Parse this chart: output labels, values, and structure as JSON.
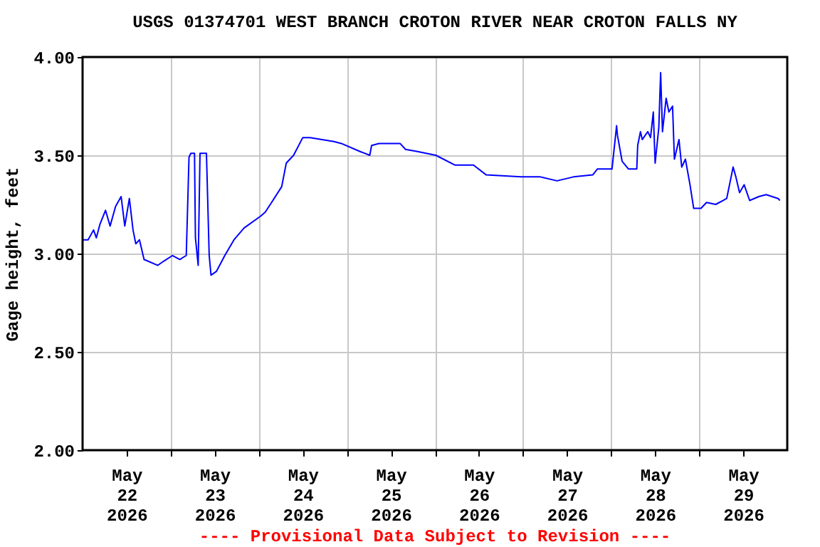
{
  "chart_data": {
    "type": "line",
    "title": "USGS 01374701 WEST BRANCH CROTON RIVER NEAR CROTON FALLS NY",
    "ylabel": "Gage height, feet",
    "annotations": [
      "---- Provisional Data Subject to Revision ----"
    ],
    "xlim": [
      "2026-05-22T00:00",
      "2026-05-30T00:00"
    ],
    "xticks": [
      {
        "value": "2026-05-22T12:00",
        "label": "May\n22\n2026"
      },
      {
        "value": "2026-05-23T00:00",
        "label": null
      },
      {
        "value": "2026-05-23T12:00",
        "label": "May\n23\n2026"
      },
      {
        "value": "2026-05-24T00:00",
        "label": null
      },
      {
        "value": "2026-05-24T12:00",
        "label": "May\n24\n2026"
      },
      {
        "value": "2026-05-25T00:00",
        "label": null
      },
      {
        "value": "2026-05-25T12:00",
        "label": "May\n25\n2026"
      },
      {
        "value": "2026-05-26T00:00",
        "label": null
      },
      {
        "value": "2026-05-26T12:00",
        "label": "May\n26\n2026"
      },
      {
        "value": "2026-05-27T00:00",
        "label": null
      },
      {
        "value": "2026-05-27T12:00",
        "label": "May\n27\n2026"
      },
      {
        "value": "2026-05-28T00:00",
        "label": null
      },
      {
        "value": "2026-05-28T12:00",
        "label": "May\n28\n2026"
      },
      {
        "value": "2026-05-29T00:00",
        "label": null
      },
      {
        "value": "2026-05-29T12:00",
        "label": "May\n29\n2026"
      }
    ],
    "ylim": [
      2.0,
      4.0
    ],
    "yticks": [
      {
        "value": 2.0,
        "label": "2.00"
      },
      {
        "value": 2.5,
        "label": "2.50"
      },
      {
        "value": 3.0,
        "label": "3.00"
      },
      {
        "value": 3.5,
        "label": "3.50"
      },
      {
        "value": 4.0,
        "label": "4.00"
      }
    ],
    "grid": true,
    "marker": "none",
    "line_style": "solid",
    "x": [
      "2026-05-22T00:00",
      "2026-05-22T01:30",
      "2026-05-22T03:00",
      "2026-05-22T03:45",
      "2026-05-22T04:45",
      "2026-05-22T06:15",
      "2026-05-22T07:30",
      "2026-05-22T09:00",
      "2026-05-22T10:30",
      "2026-05-22T11:30",
      "2026-05-22T12:45",
      "2026-05-22T13:45",
      "2026-05-22T14:30",
      "2026-05-22T15:30",
      "2026-05-22T16:45",
      "2026-05-22T20:30",
      "2026-05-22T22:00",
      "2026-05-23T00:30",
      "2026-05-23T02:30",
      "2026-05-23T04:15",
      "2026-05-23T05:00",
      "2026-05-23T05:30",
      "2026-05-23T06:30",
      "2026-05-23T06:45",
      "2026-05-23T07:30",
      "2026-05-23T08:00",
      "2026-05-23T09:45",
      "2026-05-23T10:30",
      "2026-05-23T11:00",
      "2026-05-23T12:30",
      "2026-05-23T14:45",
      "2026-05-23T17:15",
      "2026-05-23T20:00",
      "2026-05-24T00:30",
      "2026-05-24T01:45",
      "2026-05-24T03:30",
      "2026-05-24T06:15",
      "2026-05-24T07:30",
      "2026-05-24T09:30",
      "2026-05-24T12:00",
      "2026-05-24T14:00",
      "2026-05-24T20:30",
      "2026-05-24T22:30",
      "2026-05-25T03:30",
      "2026-05-25T06:15",
      "2026-05-25T06:45",
      "2026-05-25T08:45",
      "2026-05-25T14:30",
      "2026-05-25T16:00",
      "2026-05-25T19:00",
      "2026-05-26T00:15",
      "2026-05-26T05:30",
      "2026-05-26T10:30",
      "2026-05-26T14:00",
      "2026-05-26T23:30",
      "2026-05-27T04:45",
      "2026-05-27T09:15",
      "2026-05-27T13:45",
      "2026-05-27T19:00",
      "2026-05-27T20:15",
      "2026-05-28T00:15",
      "2026-05-28T01:30",
      "2026-05-28T01:45",
      "2026-05-28T03:00",
      "2026-05-28T04:45",
      "2026-05-28T07:00",
      "2026-05-28T07:15",
      "2026-05-28T08:00",
      "2026-05-28T08:30",
      "2026-05-28T10:00",
      "2026-05-28T10:45",
      "2026-05-28T11:30",
      "2026-05-28T12:00",
      "2026-05-28T13:00",
      "2026-05-28T13:30",
      "2026-05-28T14:00",
      "2026-05-28T15:00",
      "2026-05-28T15:45",
      "2026-05-28T16:45",
      "2026-05-28T17:15",
      "2026-05-28T18:30",
      "2026-05-28T19:15",
      "2026-05-28T20:15",
      "2026-05-28T21:30",
      "2026-05-28T22:30",
      "2026-05-29T00:30",
      "2026-05-29T02:00",
      "2026-05-29T04:30",
      "2026-05-29T07:30",
      "2026-05-29T09:15",
      "2026-05-29T10:00",
      "2026-05-29T11:00",
      "2026-05-29T12:15",
      "2026-05-29T13:45",
      "2026-05-29T16:15",
      "2026-05-29T18:15",
      "2026-05-29T21:30",
      "2026-05-29T22:00"
    ],
    "series": [
      {
        "color": "#0000ff",
        "values": [
          3.07,
          3.07,
          3.12,
          3.08,
          3.15,
          3.22,
          3.14,
          3.24,
          3.29,
          3.14,
          3.28,
          3.12,
          3.05,
          3.07,
          2.97,
          2.94,
          2.96,
          2.99,
          2.97,
          2.99,
          3.49,
          3.51,
          3.51,
          3.08,
          2.94,
          3.51,
          3.51,
          2.99,
          2.89,
          2.91,
          2.99,
          3.07,
          3.13,
          3.19,
          3.21,
          3.26,
          3.34,
          3.46,
          3.5,
          3.59,
          3.59,
          3.57,
          3.56,
          3.52,
          3.5,
          3.55,
          3.56,
          3.56,
          3.53,
          3.52,
          3.5,
          3.45,
          3.45,
          3.4,
          3.39,
          3.39,
          3.37,
          3.39,
          3.4,
          3.43,
          3.43,
          3.65,
          3.6,
          3.47,
          3.43,
          3.43,
          3.55,
          3.62,
          3.58,
          3.62,
          3.59,
          3.72,
          3.46,
          3.64,
          3.92,
          3.62,
          3.79,
          3.72,
          3.75,
          3.48,
          3.58,
          3.44,
          3.48,
          3.35,
          3.23,
          3.23,
          3.26,
          3.25,
          3.28,
          3.44,
          3.39,
          3.31,
          3.35,
          3.27,
          3.29,
          3.3,
          3.28,
          3.27
        ]
      }
    ]
  }
}
